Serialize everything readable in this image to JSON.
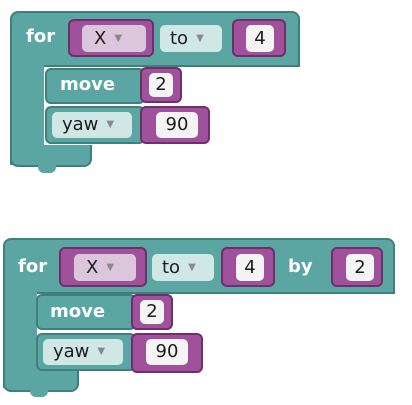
{
  "block1": {
    "for_label": "for",
    "var_value": "X",
    "to_value": "to",
    "end_value": "4",
    "move_label": "move",
    "move_value": "2",
    "yaw_value": "yaw",
    "yaw_amount": "90"
  },
  "block2": {
    "for_label": "for",
    "var_value": "X",
    "to_value": "to",
    "end_value": "4",
    "by_label": "by",
    "by_value": "2",
    "move_label": "move",
    "move_value": "2",
    "yaw_value": "yaw",
    "yaw_amount": "90"
  },
  "colors": {
    "teal": "#5ba5a2",
    "teal_border": "#3f7f7c",
    "purple": "#a0519c",
    "purple_border": "#6f2f6b"
  },
  "icons": {
    "dropdown": "dropdown-triangle-icon"
  }
}
